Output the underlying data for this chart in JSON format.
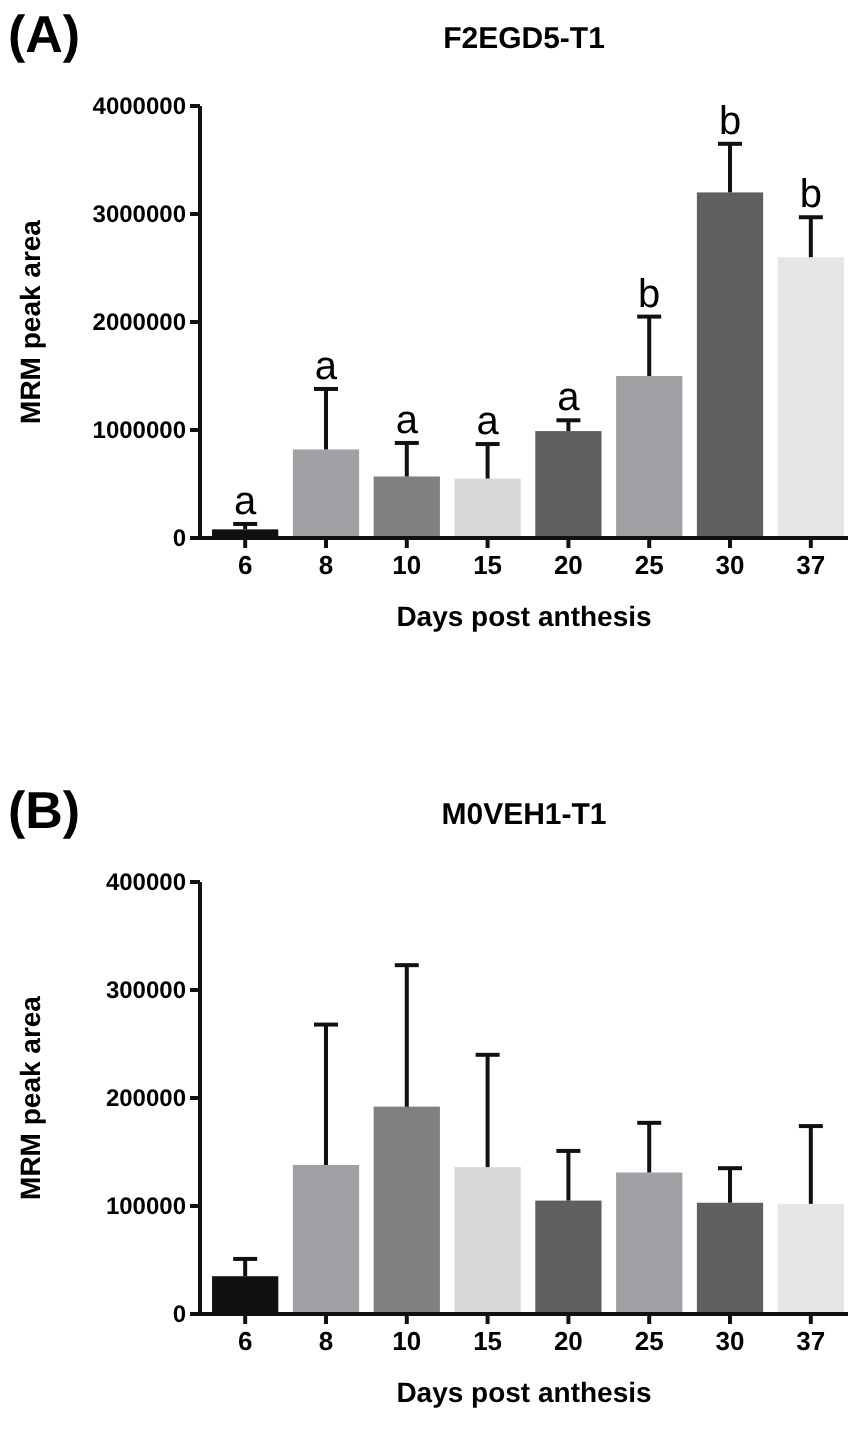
{
  "chart_data": [
    {
      "type": "bar",
      "title": "F2EGD5-T1",
      "xlabel": "Days post anthesis",
      "ylabel": "MRM peak area",
      "categories": [
        "6",
        "8",
        "10",
        "15",
        "20",
        "25",
        "30",
        "37"
      ],
      "values": [
        80000,
        820000,
        570000,
        550000,
        990000,
        1500000,
        3200000,
        2600000
      ],
      "errors": [
        [
          80000,
          130000
        ],
        [
          820000,
          1380000
        ],
        [
          570000,
          880000
        ],
        [
          550000,
          870000
        ],
        [
          990000,
          1090000
        ],
        [
          1500000,
          2050000
        ],
        [
          3200000,
          3650000
        ],
        [
          2600000,
          2970000
        ]
      ],
      "colors": [
        "#111111",
        "#a0a0a5",
        "#808080",
        "#d8d8d8",
        "#606060",
        "#a0a0a5",
        "#606060",
        "#e6e6e6"
      ],
      "ylim": [
        0,
        4000000
      ],
      "yticks": [
        0,
        1000000,
        2000000,
        3000000,
        4000000
      ],
      "grid": false,
      "annotations": [
        "(A)",
        "a",
        "a",
        "a",
        "a",
        "a",
        "b",
        "b",
        "b"
      ]
    },
    {
      "type": "bar",
      "title": "M0VEH1-T1",
      "xlabel": "Days post anthesis",
      "ylabel": "MRM peak area",
      "categories": [
        "6",
        "8",
        "10",
        "15",
        "20",
        "25",
        "30",
        "37"
      ],
      "values": [
        35000,
        138000,
        192000,
        136000,
        105000,
        131000,
        103000,
        102000
      ],
      "errors": [
        [
          35000,
          51000
        ],
        [
          138000,
          268000
        ],
        [
          192000,
          323000
        ],
        [
          136000,
          240000
        ],
        [
          105000,
          151000
        ],
        [
          131000,
          177000
        ],
        [
          103000,
          135000
        ],
        [
          102000,
          174000
        ]
      ],
      "colors": [
        "#111111",
        "#a0a0a5",
        "#808080",
        "#d8d8d8",
        "#606060",
        "#a0a0a5",
        "#606060",
        "#e6e6e6"
      ],
      "ylim": [
        0,
        400000
      ],
      "yticks": [
        0,
        100000,
        200000,
        300000,
        400000
      ],
      "grid": false,
      "annotations": [
        "(B)"
      ]
    }
  ]
}
